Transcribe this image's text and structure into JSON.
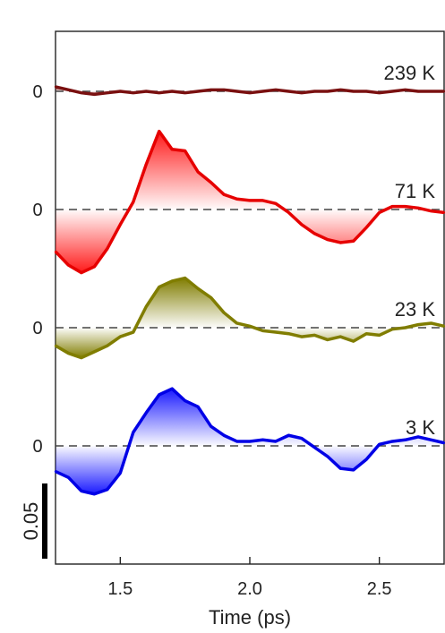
{
  "chart_data": {
    "type": "line",
    "title": "",
    "xlabel": "Time (ps)",
    "ylabel": "",
    "xlim": [
      1.25,
      2.75
    ],
    "x_ticks": [
      1.5,
      2.0,
      2.5
    ],
    "x_tick_labels": [
      "1.5",
      "2.0",
      "2.5"
    ],
    "baseline_label": "0",
    "scale_bar": {
      "label": "0.05",
      "value": 0.05
    },
    "y_units_per_scale": 0.05,
    "grid": false,
    "legend": "none",
    "series": [
      {
        "name": "239 K",
        "color": "#7a1010",
        "fill_positive": "#7a1010",
        "fill_negative": "#7a1010",
        "x": [
          1.25,
          1.3,
          1.35,
          1.4,
          1.45,
          1.5,
          1.55,
          1.6,
          1.65,
          1.7,
          1.75,
          1.8,
          1.85,
          1.9,
          1.95,
          2.0,
          2.05,
          2.1,
          2.15,
          2.2,
          2.25,
          2.3,
          2.35,
          2.4,
          2.45,
          2.5,
          2.55,
          2.6,
          2.65,
          2.7,
          2.75
        ],
        "y": [
          0.003,
          0.001,
          -0.001,
          -0.002,
          -0.001,
          0.0,
          -0.001,
          0.0,
          -0.001,
          0.0,
          -0.001,
          0.0,
          0.001,
          0.001,
          0.0,
          -0.001,
          0.0,
          0.001,
          0.0,
          -0.001,
          0.0,
          0.0,
          0.001,
          0.0,
          0.0,
          -0.001,
          0.0,
          0.001,
          0.0,
          0.0,
          0.0
        ]
      },
      {
        "name": "71 K",
        "color": "#e60000",
        "fill_positive": "#ff1a1a",
        "fill_negative": "#ff1a1a",
        "x": [
          1.25,
          1.3,
          1.35,
          1.4,
          1.45,
          1.5,
          1.55,
          1.6,
          1.65,
          1.7,
          1.75,
          1.8,
          1.85,
          1.9,
          1.95,
          2.0,
          2.05,
          2.1,
          2.15,
          2.2,
          2.25,
          2.3,
          2.35,
          2.4,
          2.45,
          2.5,
          2.55,
          2.6,
          2.65,
          2.7,
          2.75
        ],
        "y": [
          -0.028,
          -0.037,
          -0.042,
          -0.038,
          -0.026,
          -0.01,
          0.005,
          0.03,
          0.052,
          0.04,
          0.039,
          0.025,
          0.018,
          0.01,
          0.007,
          0.006,
          0.006,
          0.004,
          -0.002,
          -0.01,
          -0.016,
          -0.02,
          -0.022,
          -0.021,
          -0.012,
          -0.002,
          0.002,
          0.002,
          0.001,
          -0.001,
          -0.002
        ]
      },
      {
        "name": "23 K",
        "color": "#807d00",
        "fill_positive": "#807d00",
        "fill_negative": "#807d00",
        "x": [
          1.25,
          1.3,
          1.35,
          1.4,
          1.45,
          1.5,
          1.55,
          1.6,
          1.65,
          1.7,
          1.75,
          1.8,
          1.85,
          1.9,
          1.95,
          2.0,
          2.05,
          2.1,
          2.15,
          2.2,
          2.25,
          2.3,
          2.35,
          2.4,
          2.45,
          2.5,
          2.55,
          2.6,
          2.65,
          2.7,
          2.75
        ],
        "y": [
          -0.012,
          -0.017,
          -0.02,
          -0.016,
          -0.012,
          -0.006,
          -0.003,
          0.014,
          0.027,
          0.031,
          0.033,
          0.026,
          0.02,
          0.01,
          0.003,
          0.001,
          -0.002,
          -0.003,
          -0.004,
          -0.006,
          -0.005,
          -0.008,
          -0.006,
          -0.009,
          -0.004,
          -0.005,
          -0.001,
          0.0,
          0.002,
          0.003,
          0.001
        ]
      },
      {
        "name": "3 K",
        "color": "#0000e6",
        "fill_positive": "#1a1aff",
        "fill_negative": "#1a1aff",
        "x": [
          1.25,
          1.3,
          1.35,
          1.4,
          1.45,
          1.5,
          1.55,
          1.6,
          1.65,
          1.7,
          1.75,
          1.8,
          1.85,
          1.9,
          1.95,
          2.0,
          2.05,
          2.1,
          2.15,
          2.2,
          2.25,
          2.3,
          2.35,
          2.4,
          2.45,
          2.5,
          2.55,
          2.6,
          2.65,
          2.7,
          2.75
        ],
        "y": [
          -0.017,
          -0.021,
          -0.03,
          -0.032,
          -0.029,
          -0.018,
          0.009,
          0.022,
          0.034,
          0.038,
          0.03,
          0.026,
          0.013,
          0.007,
          0.003,
          0.003,
          0.004,
          0.003,
          0.007,
          0.005,
          -0.001,
          -0.007,
          -0.015,
          -0.016,
          -0.009,
          0.001,
          0.003,
          0.004,
          0.006,
          0.004,
          0.002
        ]
      }
    ]
  }
}
